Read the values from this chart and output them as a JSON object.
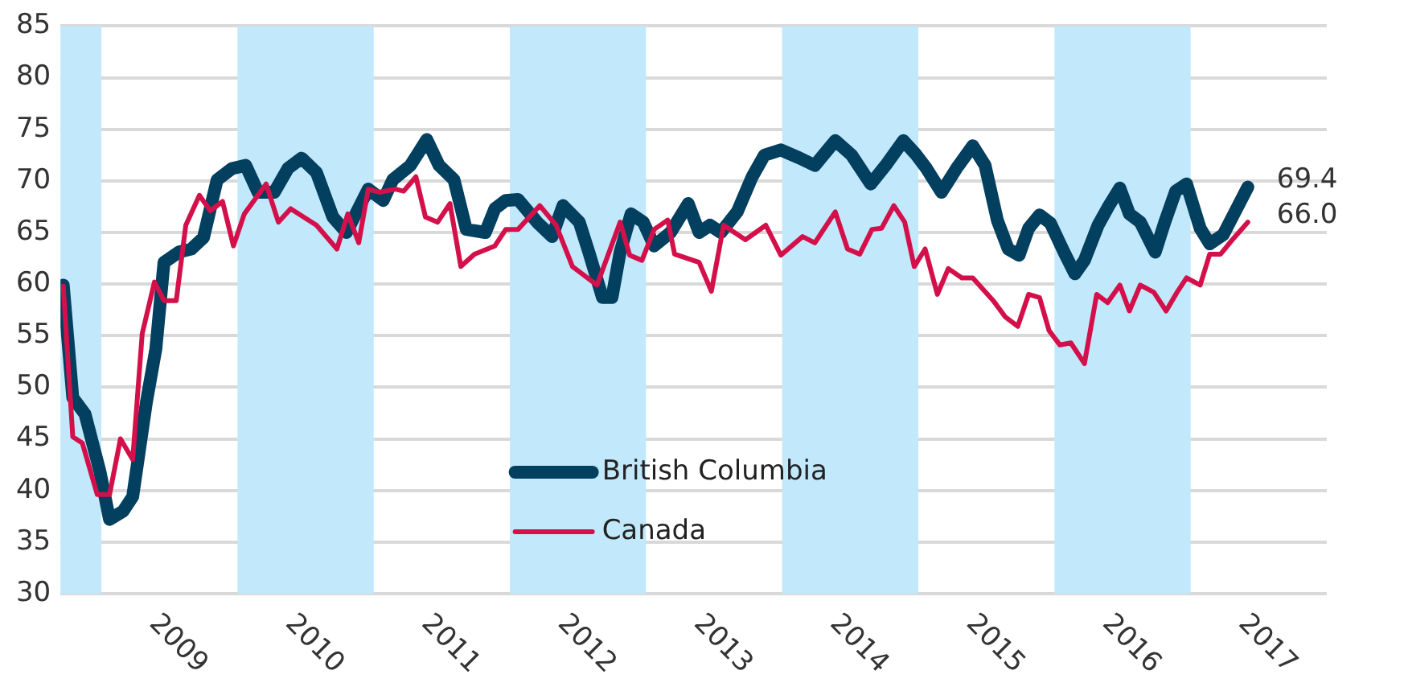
{
  "chart_data": {
    "type": "line",
    "series": [
      {
        "name": "British Columbia",
        "color": "#033f5e",
        "x": [
          2008.72,
          2008.79,
          2008.88,
          2008.99,
          2009.06,
          2009.16,
          2009.23,
          2009.33,
          2009.4,
          2009.46,
          2009.57,
          2009.66,
          2009.75,
          2009.85,
          2009.96,
          2010.06,
          2010.15,
          2010.27,
          2010.37,
          2010.47,
          2010.58,
          2010.7,
          2010.8,
          2010.96,
          2011.07,
          2011.14,
          2011.27,
          2011.39,
          2011.48,
          2011.59,
          2011.68,
          2011.82,
          2011.89,
          2011.97,
          2012.06,
          2012.2,
          2012.31,
          2012.39,
          2012.51,
          2012.58,
          2012.68,
          2012.75,
          2012.81,
          2012.89,
          2012.98,
          2013.06,
          2013.18,
          2013.31,
          2013.39,
          2013.47,
          2013.55,
          2013.67,
          2013.78,
          2013.87,
          2013.99,
          2014.13,
          2014.24,
          2014.39,
          2014.51,
          2014.65,
          2014.76,
          2014.89,
          2014.98,
          2015.06,
          2015.17,
          2015.28,
          2015.4,
          2015.49,
          2015.58,
          2015.66,
          2015.74,
          2015.81,
          2015.89,
          2015.97,
          2016.07,
          2016.15,
          2016.22,
          2016.32,
          2016.4,
          2016.48,
          2016.55,
          2016.63,
          2016.74,
          2016.81,
          2016.89,
          2016.97,
          2017.07,
          2017.14,
          2017.24,
          2017.42
        ],
        "values": [
          59.9,
          49,
          47.4,
          41.8,
          37.2,
          38,
          39.4,
          48.5,
          53.7,
          62.1,
          63.1,
          63.4,
          64.5,
          70.1,
          71.2,
          71.5,
          68.9,
          68.9,
          71.2,
          72.2,
          70.8,
          66.5,
          65,
          69.2,
          68.1,
          70.1,
          71.5,
          74,
          71.5,
          70.1,
          65.3,
          65,
          67.3,
          68.1,
          68.2,
          66,
          64.6,
          67.6,
          66,
          63.1,
          58.7,
          58.7,
          63.1,
          66.8,
          66,
          63.7,
          65,
          67.8,
          65,
          65.7,
          65,
          67,
          70.4,
          72.5,
          73,
          72.2,
          71.5,
          73.9,
          72.5,
          69.7,
          71.5,
          73.9,
          72.6,
          71.2,
          68.9,
          71.2,
          73.4,
          71.5,
          66.2,
          63.4,
          62.8,
          65.4,
          66.7,
          65.9,
          63.1,
          61,
          62.3,
          65.7,
          67.6,
          69.3,
          66.8,
          66,
          63.1,
          66,
          69,
          69.7,
          65.4,
          63.9,
          64.8,
          69.4
        ]
      },
      {
        "name": "Canada",
        "color": "#d4104a",
        "x": [
          2008.72,
          2008.79,
          2008.86,
          2008.97,
          2009.06,
          2009.14,
          2009.23,
          2009.3,
          2009.39,
          2009.46,
          2009.55,
          2009.62,
          2009.72,
          2009.8,
          2009.89,
          2009.97,
          2010.05,
          2010.21,
          2010.3,
          2010.39,
          2010.58,
          2010.73,
          2010.81,
          2010.89,
          2010.96,
          2011.04,
          2011.16,
          2011.22,
          2011.31,
          2011.38,
          2011.47,
          2011.56,
          2011.64,
          2011.74,
          2011.89,
          2011.97,
          2012.06,
          2012.22,
          2012.34,
          2012.46,
          2012.64,
          2012.81,
          2012.88,
          2012.97,
          2013.06,
          2013.16,
          2013.21,
          2013.39,
          2013.48,
          2013.57,
          2013.73,
          2013.88,
          2013.99,
          2014.15,
          2014.24,
          2014.39,
          2014.48,
          2014.57,
          2014.66,
          2014.73,
          2014.82,
          2014.9,
          2014.97,
          2015.05,
          2015.14,
          2015.22,
          2015.32,
          2015.4,
          2015.55,
          2015.64,
          2015.73,
          2015.81,
          2015.89,
          2015.96,
          2016.04,
          2016.12,
          2016.22,
          2016.31,
          2016.39,
          2016.48,
          2016.55,
          2016.63,
          2016.73,
          2016.82,
          2016.9,
          2016.97,
          2017.07,
          2017.14,
          2017.22,
          2017.3,
          2017.42
        ],
        "values": [
          59.8,
          45.2,
          44.6,
          39.6,
          39.6,
          45,
          43,
          55.2,
          60.2,
          58.4,
          58.4,
          65.7,
          68.6,
          67.1,
          68,
          63.7,
          66.8,
          69.7,
          66,
          67.3,
          65.7,
          63.4,
          66.8,
          64,
          69.2,
          68.9,
          69.2,
          69,
          70.4,
          66.5,
          66,
          67.8,
          61.7,
          62.9,
          63.7,
          65.3,
          65.3,
          67.6,
          65.7,
          61.7,
          59.9,
          66,
          62.8,
          62.3,
          65.3,
          66.2,
          62.9,
          62.1,
          59.3,
          65.7,
          64.3,
          65.7,
          62.8,
          64.6,
          64,
          67,
          63.4,
          62.9,
          65.3,
          65.4,
          67.6,
          66,
          61.7,
          63.4,
          59,
          61.5,
          60.6,
          60.6,
          58.4,
          56.8,
          55.9,
          59,
          58.7,
          55.5,
          54.1,
          54.3,
          52.3,
          59,
          58.2,
          59.9,
          57.4,
          59.9,
          59.2,
          57.4,
          59.2,
          60.6,
          59.9,
          62.9,
          62.9,
          64.2,
          66
        ]
      }
    ],
    "xlim": [
      2008.7,
      2018
    ],
    "xticks": [
      {
        "value": 2009.5,
        "label": "2009"
      },
      {
        "value": 2010.5,
        "label": "2010"
      },
      {
        "value": 2011.5,
        "label": "2011"
      },
      {
        "value": 2012.5,
        "label": "2012"
      },
      {
        "value": 2013.5,
        "label": "2013"
      },
      {
        "value": 2014.5,
        "label": "2014"
      },
      {
        "value": 2015.5,
        "label": "2015"
      },
      {
        "value": 2016.5,
        "label": "2016"
      },
      {
        "value": 2017.5,
        "label": "2017"
      }
    ],
    "ylim": [
      30,
      85
    ],
    "yticks": [
      30,
      35,
      40,
      45,
      50,
      55,
      60,
      65,
      70,
      75,
      80,
      85
    ],
    "bands": [
      {
        "axis": "x",
        "from": 2008.7,
        "to": 2009,
        "color": "#c2e8fc"
      },
      {
        "axis": "x",
        "from": 2010,
        "to": 2011,
        "color": "#c2e8fc"
      },
      {
        "axis": "x",
        "from": 2012,
        "to": 2013,
        "color": "#c2e8fc"
      },
      {
        "axis": "x",
        "from": 2014,
        "to": 2015,
        "color": "#c2e8fc"
      },
      {
        "axis": "x",
        "from": 2016,
        "to": 2017,
        "color": "#c2e8fc"
      }
    ],
    "annotations": [
      {
        "text": "69.4",
        "x": 2017.42,
        "y": 69.4
      },
      {
        "text": "66.0",
        "x": 2017.42,
        "y": 66
      }
    ],
    "grid": "y",
    "legend": "bottom",
    "marker": "none",
    "line_style": "solid"
  }
}
